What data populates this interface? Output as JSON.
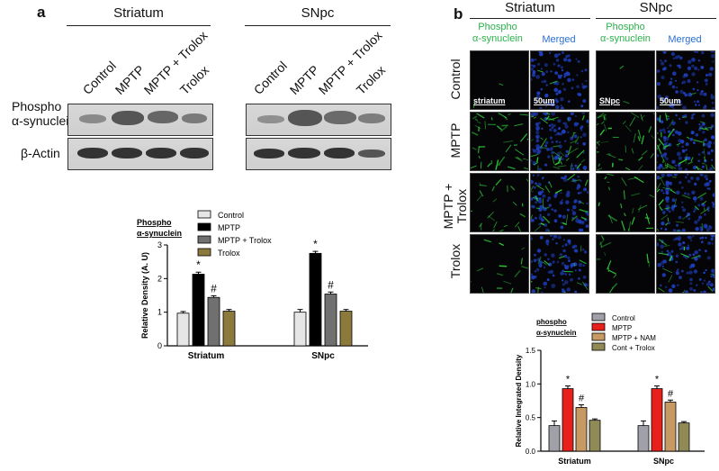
{
  "panel_a": {
    "letter": "a",
    "groups": [
      "Striatum",
      "SNpc"
    ],
    "lanes": [
      "Control",
      "MPTP",
      "MPTP + Trolox",
      "Trolox"
    ],
    "row_labels": [
      "Phospho\nα-synuclein",
      "β-Actin"
    ]
  },
  "panel_b": {
    "letter": "b",
    "groups": [
      "Striatum",
      "SNpc"
    ],
    "channels": [
      "Phospho\nα-synuclein",
      "Merged"
    ],
    "rows": [
      "Control",
      "MPTP",
      "MPTP +\nTrolox",
      "Trolox"
    ],
    "scale_labels": [
      "striatum",
      "50um",
      "SNpc",
      "50um"
    ]
  },
  "chart_data": [
    {
      "type": "bar",
      "title": "Phospho\nα-synuclein",
      "ylabel": "Relative Density (A. U)",
      "categories": [
        "Striatum",
        "SNpc"
      ],
      "ylim": [
        0,
        3
      ],
      "yticks": [
        "0",
        "1",
        "2",
        "3"
      ],
      "legend": "top-right",
      "series": [
        {
          "name": "Control",
          "color": "#e6e6e6",
          "values": [
            0.97,
            1.0
          ],
          "errors": [
            0.05,
            0.08
          ],
          "marks": [
            "",
            ""
          ]
        },
        {
          "name": "MPTP",
          "color": "#000000",
          "values": [
            2.13,
            2.75
          ],
          "errors": [
            0.06,
            0.06
          ],
          "marks": [
            "*",
            "*"
          ]
        },
        {
          "name": "MPTP + Trolox",
          "color": "#707070",
          "values": [
            1.44,
            1.54
          ],
          "errors": [
            0.05,
            0.06
          ],
          "marks": [
            "#",
            "#"
          ]
        },
        {
          "name": "Trolox",
          "color": "#8b7a3c",
          "values": [
            1.03,
            1.03
          ],
          "errors": [
            0.05,
            0.05
          ],
          "marks": [
            "",
            ""
          ]
        }
      ]
    },
    {
      "type": "bar",
      "title": "phospho\nα-synuclein",
      "ylabel": "Relative Integrated Density",
      "categories": [
        "Striatum",
        "SNpc"
      ],
      "ylim": [
        0,
        1.5
      ],
      "yticks": [
        "0.0",
        "0.5",
        "1.0",
        "1.5"
      ],
      "legend": "top-right",
      "series": [
        {
          "name": "Control",
          "color": "#a0a0a8",
          "values": [
            0.38,
            0.38
          ],
          "errors": [
            0.07,
            0.07
          ],
          "marks": [
            "",
            ""
          ]
        },
        {
          "name": "MPTP",
          "color": "#e8201c",
          "values": [
            0.93,
            0.93
          ],
          "errors": [
            0.04,
            0.04
          ],
          "marks": [
            "*",
            "*"
          ]
        },
        {
          "name": "MPTP + NAM",
          "color": "#c79a63",
          "values": [
            0.65,
            0.73
          ],
          "errors": [
            0.04,
            0.03
          ],
          "marks": [
            "#",
            "#"
          ]
        },
        {
          "name": "Cont + Trolox",
          "color": "#8f8a56",
          "values": [
            0.46,
            0.42
          ],
          "errors": [
            0.02,
            0.02
          ],
          "marks": [
            "",
            ""
          ]
        }
      ]
    }
  ]
}
